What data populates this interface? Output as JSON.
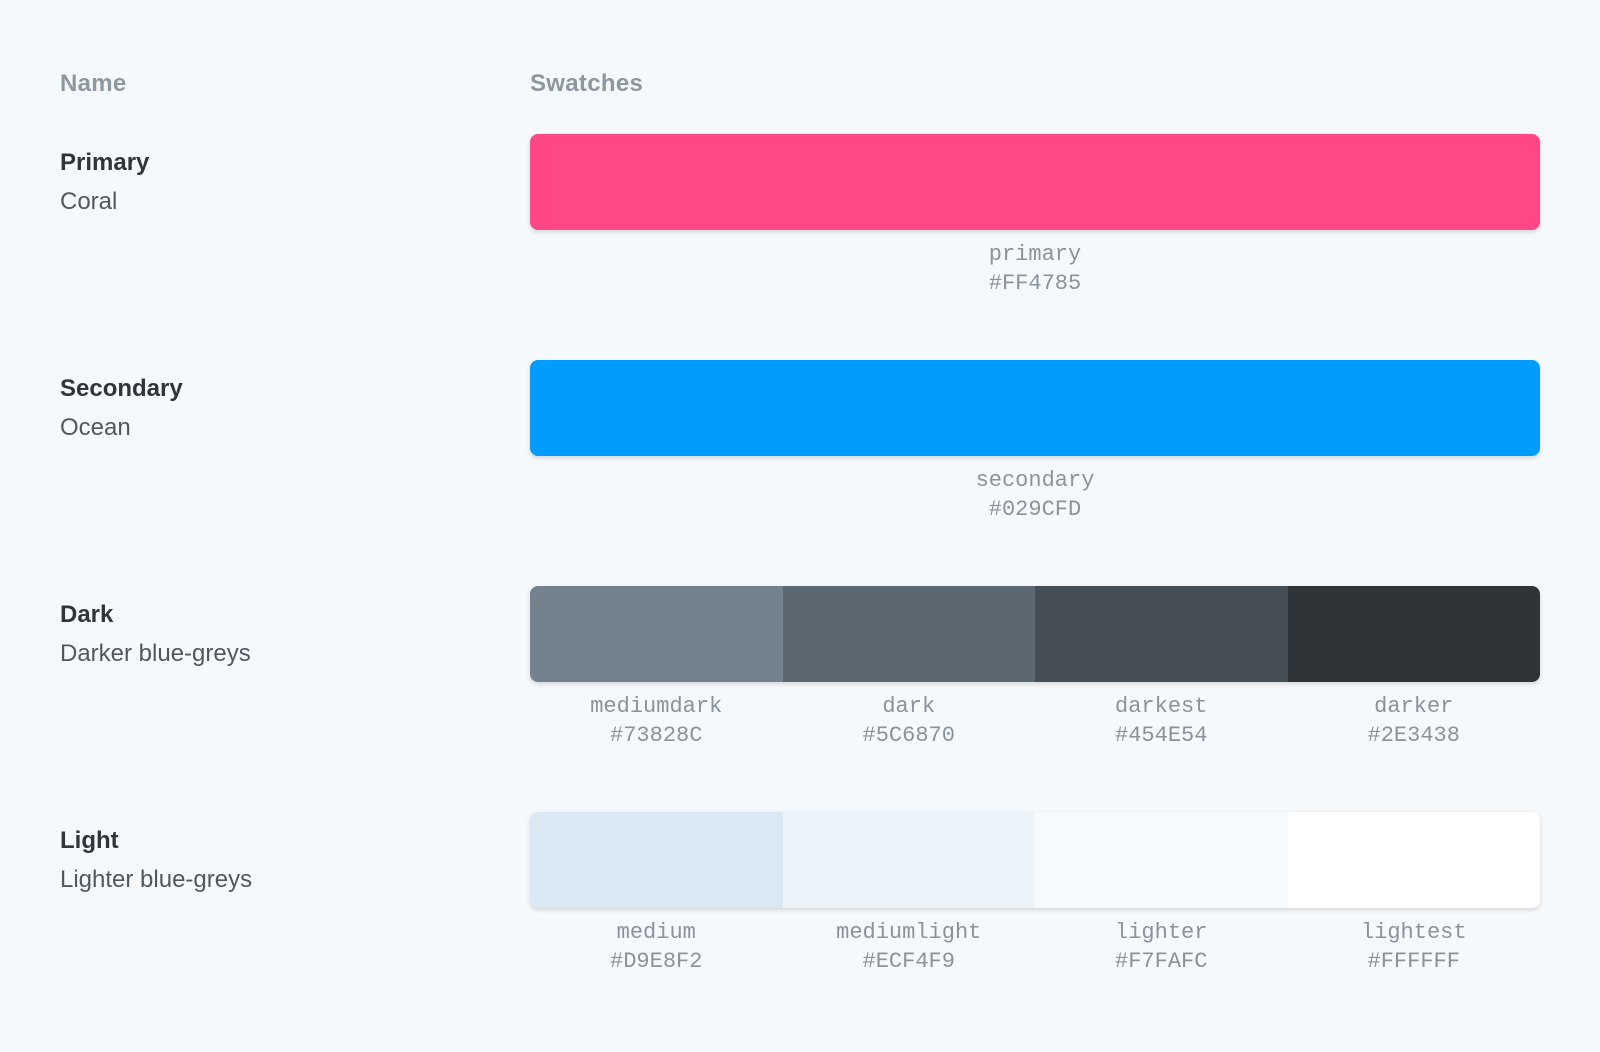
{
  "columns": {
    "name": "Name",
    "swatches": "Swatches"
  },
  "theme": {
    "background": "#F6F9FC",
    "header_text": "#8D97A1",
    "title_text": "#2F353B",
    "subtitle_text": "#50585F",
    "label_text": "#8A929A",
    "primary_accent": "#FF4785",
    "secondary_accent": "#029CFD"
  },
  "rows": [
    {
      "title": "Primary",
      "subtitle": "Coral",
      "swatches": [
        {
          "name": "primary",
          "hex": "#FF4785"
        }
      ]
    },
    {
      "title": "Secondary",
      "subtitle": "Ocean",
      "swatches": [
        {
          "name": "secondary",
          "hex": "#029CFD"
        }
      ]
    },
    {
      "title": "Dark",
      "subtitle": "Darker blue-greys",
      "swatches": [
        {
          "name": "mediumdark",
          "hex": "#73828C"
        },
        {
          "name": "dark",
          "hex": "#5C6870"
        },
        {
          "name": "darkest",
          "hex": "#454E54"
        },
        {
          "name": "darker",
          "hex": "#2E3438"
        }
      ]
    },
    {
      "title": "Light",
      "subtitle": "Lighter blue-greys",
      "swatches": [
        {
          "name": "medium",
          "hex": "#D9E8F2"
        },
        {
          "name": "mediumlight",
          "hex": "#ECF4F9"
        },
        {
          "name": "lighter",
          "hex": "#F7FAFC"
        },
        {
          "name": "lightest",
          "hex": "#FFFFFF"
        }
      ]
    }
  ]
}
